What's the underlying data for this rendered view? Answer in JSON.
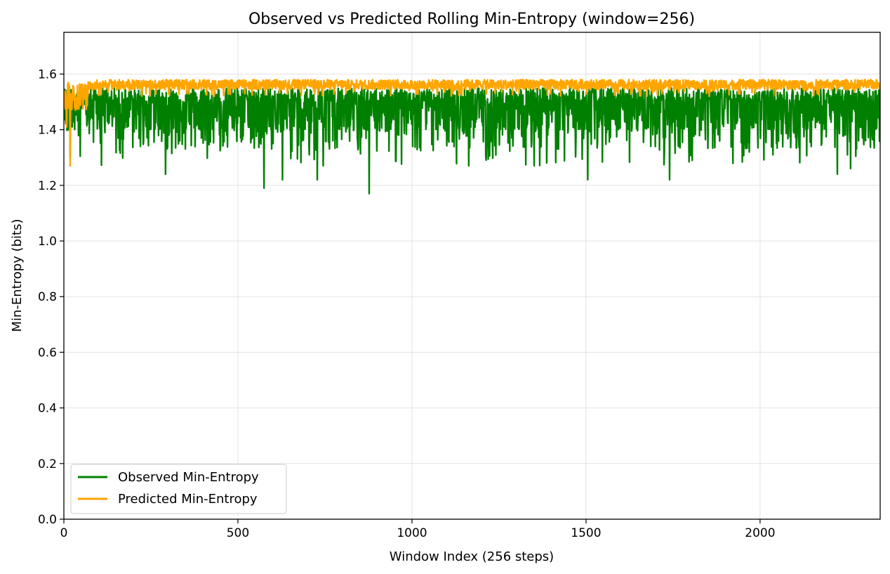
{
  "chart_data": {
    "type": "line",
    "title": "Observed vs Predicted Rolling Min-Entropy (window=256)",
    "xlabel": "Window Index (256 steps)",
    "ylabel": "Min-Entropy (bits)",
    "xlim": [
      0,
      2345
    ],
    "ylim": [
      0,
      1.75
    ],
    "xticks": [
      0,
      500,
      1000,
      1500,
      2000
    ],
    "yticks": [
      0.0,
      0.2,
      0.4,
      0.6,
      0.8,
      1.0,
      1.2,
      1.4,
      1.6
    ],
    "grid": true,
    "legend_position": "lower-left",
    "series": [
      {
        "name": "Observed Min-Entropy",
        "color": "#008000",
        "n_points": 2345,
        "typical_range": [
          1.34,
          1.55
        ],
        "mean": 1.45,
        "min": 1.17,
        "max": 1.57,
        "notable_dips": [
          {
            "x": 292,
            "y": 1.24
          },
          {
            "x": 575,
            "y": 1.19
          },
          {
            "x": 628,
            "y": 1.22
          },
          {
            "x": 728,
            "y": 1.22
          },
          {
            "x": 877,
            "y": 1.17
          },
          {
            "x": 1505,
            "y": 1.22
          },
          {
            "x": 1740,
            "y": 1.22
          },
          {
            "x": 2222,
            "y": 1.24
          },
          {
            "x": 2260,
            "y": 1.26
          }
        ]
      },
      {
        "name": "Predicted Min-Entropy",
        "color": "#FFA500",
        "n_points": 2345,
        "typical_range": [
          1.53,
          1.58
        ],
        "mean": 1.56,
        "min": 1.27,
        "max": 1.585,
        "notable_dips": [
          {
            "x": 18,
            "y": 1.27
          },
          {
            "x": 8,
            "y": 1.41
          }
        ]
      }
    ]
  }
}
